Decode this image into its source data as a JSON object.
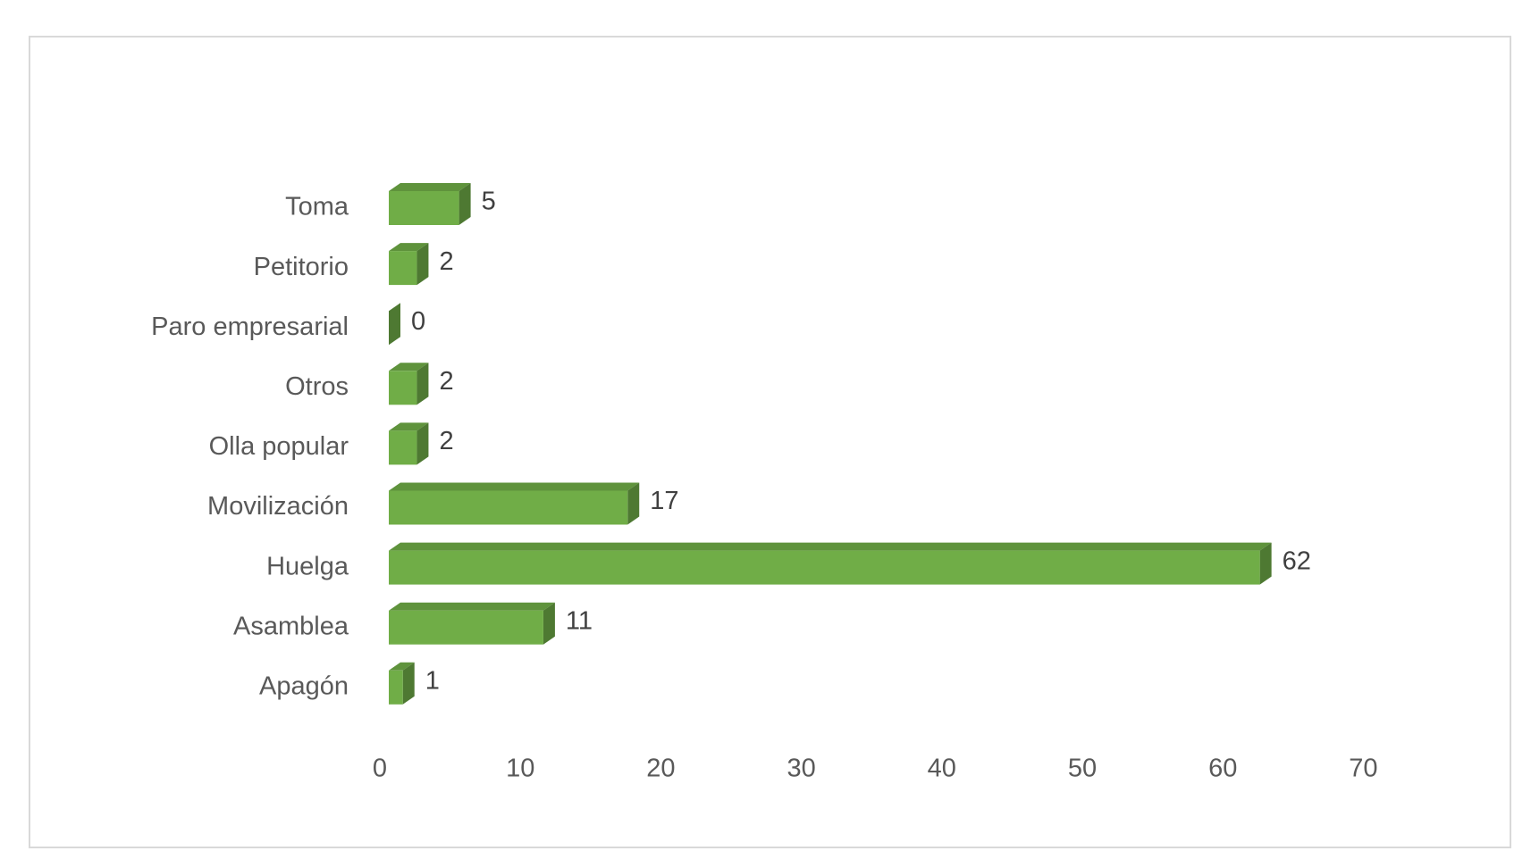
{
  "chart_data": {
    "type": "bar3d-horizontal",
    "categories": [
      "Toma",
      "Petitorio",
      "Paro empresarial",
      "Otros",
      "Olla popular",
      "Movilización",
      "Huelga",
      "Asamblea",
      "Apagón"
    ],
    "values": [
      5,
      2,
      0,
      2,
      2,
      17,
      62,
      11,
      1
    ],
    "color": "#70ad47",
    "xlim": [
      0,
      70
    ],
    "xticks": [
      0,
      10,
      20,
      30,
      40,
      50,
      60,
      70
    ],
    "grid": false
  }
}
